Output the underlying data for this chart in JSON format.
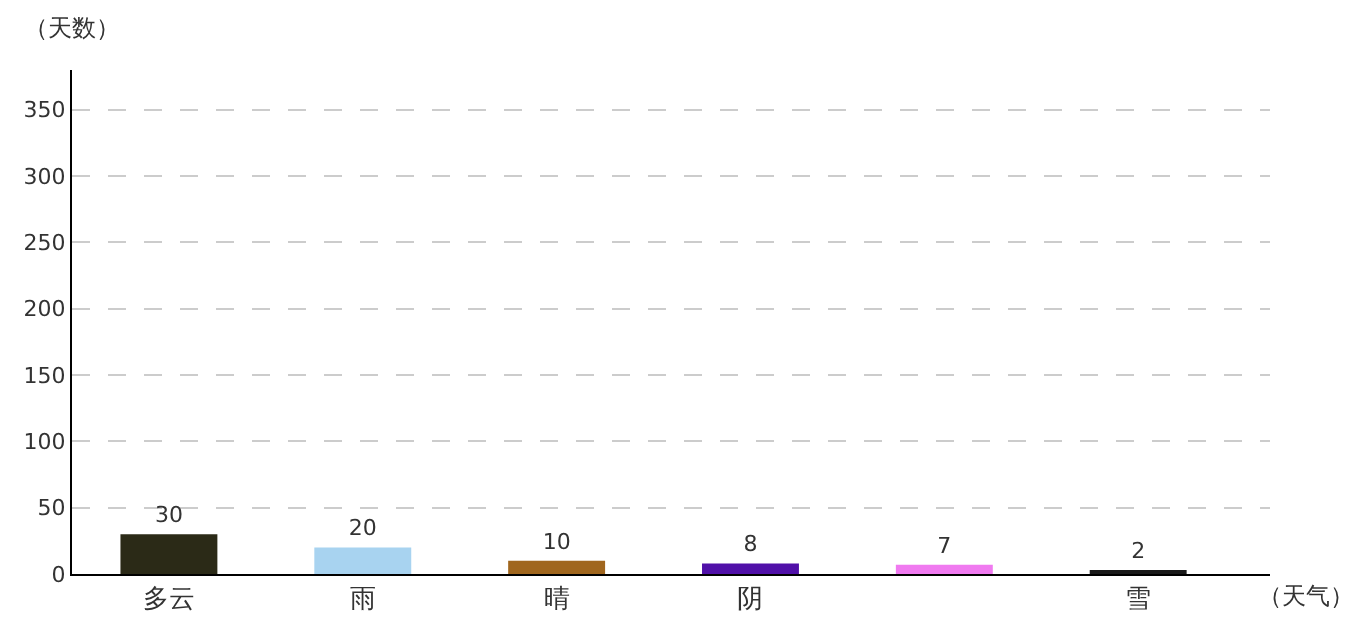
{
  "chart_data": {
    "type": "bar",
    "xlabel": "（天气）",
    "ylabel": "（天数）",
    "categories": [
      "多云",
      "雨",
      "晴",
      "阴",
      null,
      "雪"
    ],
    "values": [
      30,
      20,
      10,
      8,
      7,
      2
    ],
    "colors": [
      "#2b2a17",
      "#a8d3f0",
      "#a0661e",
      "#5010a8",
      "#f07af0",
      "#1a1a1a"
    ],
    "ylim": [
      0,
      380
    ],
    "yticks": [
      0,
      50,
      100,
      150,
      200,
      250,
      300,
      350
    ],
    "grid": "y",
    "data_labels": true
  }
}
